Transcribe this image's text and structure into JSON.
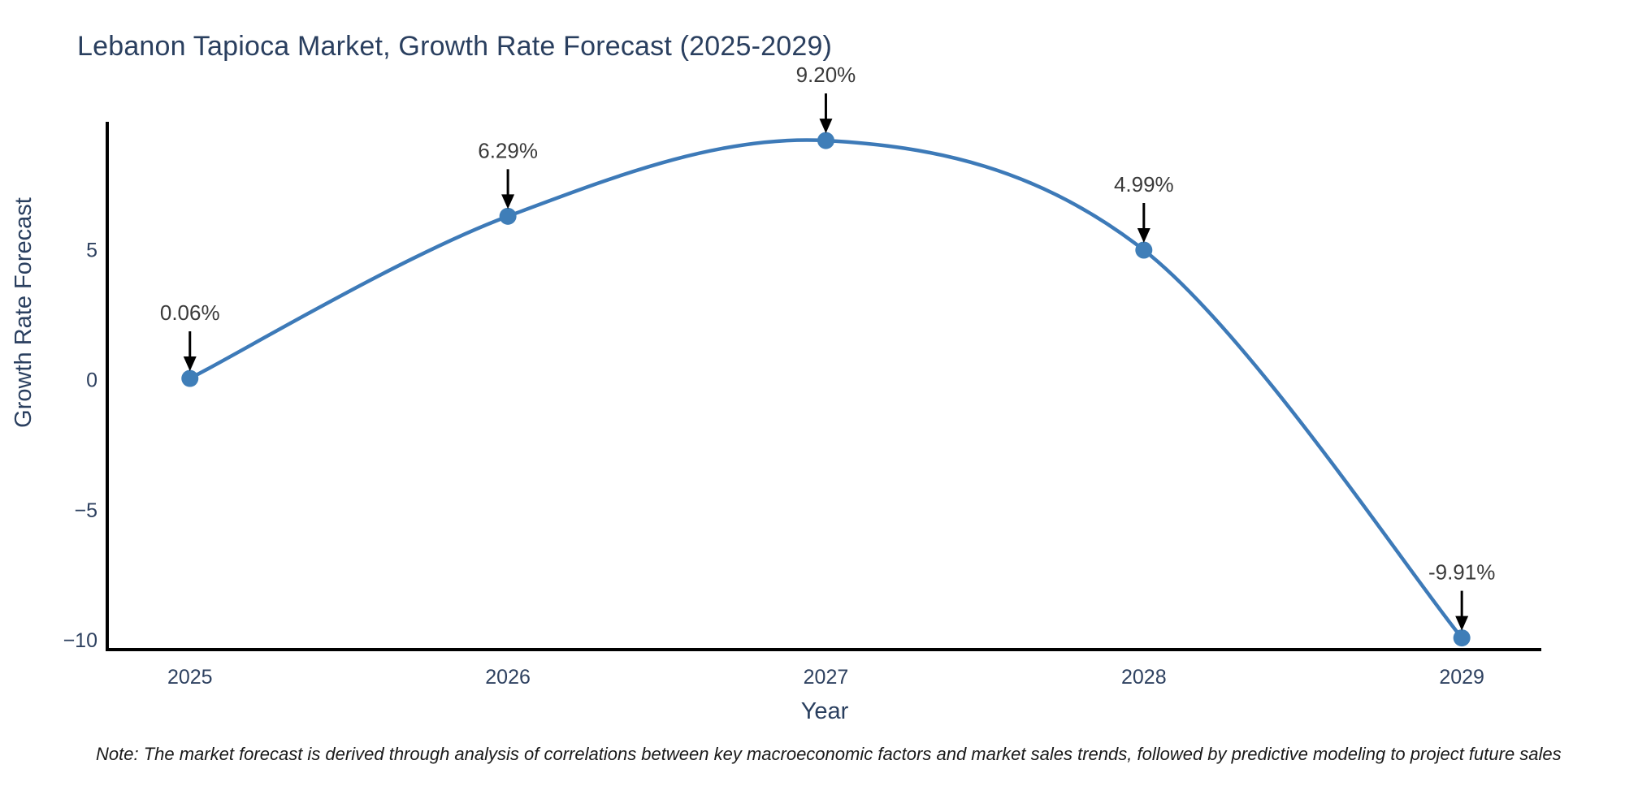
{
  "chart_data": {
    "type": "line",
    "title": "Lebanon Tapioca Market, Growth Rate Forecast (2025-2029)",
    "xlabel": "Year",
    "ylabel": "Growth Rate Forecast",
    "x": [
      2025,
      2026,
      2027,
      2028,
      2029
    ],
    "y": [
      0.06,
      6.29,
      9.2,
      4.99,
      -9.91
    ],
    "point_labels": [
      "0.06%",
      "6.29%",
      "9.20%",
      "4.99%",
      "-9.91%"
    ],
    "x_tick_values": [
      2025,
      2026,
      2027,
      2028,
      2029
    ],
    "x_tick_labels": [
      "2025",
      "2026",
      "2027",
      "2028",
      "2029"
    ],
    "y_tick_values": [
      5,
      0,
      -5,
      -10
    ],
    "y_tick_labels": [
      "5",
      "0",
      "−5",
      "−10"
    ],
    "xlim": [
      2024.74,
      2029.25
    ],
    "ylim": [
      -10.36,
      9.92
    ],
    "grid": false,
    "legend": "none",
    "line_shape": "spline",
    "line_color": "#3d7ab8",
    "marker_color": "#3f7eb8",
    "axis_line_color": "#000000",
    "annotation_color": "#3a3a3a",
    "arrow_color": "#000000",
    "note": "Note: The market forecast is derived through analysis of correlations between key macroeconomic factors and market sales trends, followed by predictive modeling to project future sales"
  }
}
